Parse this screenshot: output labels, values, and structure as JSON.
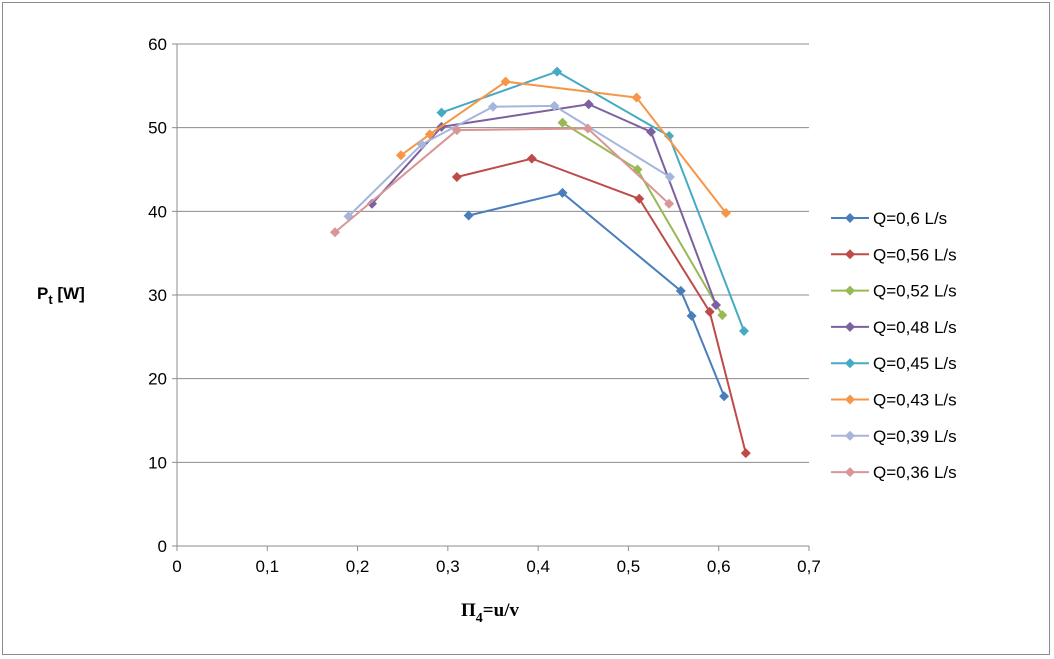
{
  "chart_data": {
    "type": "line",
    "title": "",
    "xlabel_main": "Π",
    "xlabel_sub": "4",
    "xlabel_rest": "=u/v",
    "ylabel_main": "P",
    "ylabel_sub": "t",
    "ylabel_rest": " [W]",
    "xlim": [
      0,
      0.7
    ],
    "ylim": [
      0,
      60
    ],
    "xticks": [
      0,
      0.1,
      0.2,
      0.3,
      0.4,
      0.5,
      0.6,
      0.7
    ],
    "xtick_labels": [
      "0",
      "0,1",
      "0,2",
      "0,3",
      "0,4",
      "0,5",
      "0,6",
      "0,7"
    ],
    "yticks": [
      0,
      10,
      20,
      30,
      40,
      50,
      60
    ],
    "ytick_labels": [
      "0",
      "10",
      "20",
      "30",
      "40",
      "50",
      "60"
    ],
    "grid": "horizontal",
    "legend_position": "right",
    "series": [
      {
        "name": "Q=0,6 L/s",
        "color": "#4a7ebb",
        "x": [
          0.323,
          0.427,
          0.558,
          0.57,
          0.606
        ],
        "y": [
          39.5,
          42.2,
          30.5,
          27.5,
          17.9
        ]
      },
      {
        "name": "Q=0,56 L/s",
        "color": "#be4b48",
        "x": [
          0.31,
          0.393,
          0.512,
          0.59,
          0.63
        ],
        "y": [
          44.1,
          46.3,
          41.5,
          28.0,
          11.1
        ]
      },
      {
        "name": "Q=0,52 L/s",
        "color": "#98b954",
        "x": [
          0.427,
          0.51,
          0.604
        ],
        "y": [
          50.6,
          45.0,
          27.6
        ]
      },
      {
        "name": "Q=0,48 L/s",
        "color": "#7d60a0",
        "x": [
          0.216,
          0.293,
          0.456,
          0.525,
          0.597
        ],
        "y": [
          40.9,
          50.1,
          52.8,
          49.5,
          28.8
        ]
      },
      {
        "name": "Q=0,45 L/s",
        "color": "#46aac5",
        "x": [
          0.293,
          0.421,
          0.545,
          0.628
        ],
        "y": [
          51.8,
          56.7,
          49.0,
          25.7
        ]
      },
      {
        "name": "Q=0,43 L/s",
        "color": "#f79646",
        "x": [
          0.248,
          0.28,
          0.364,
          0.509,
          0.608
        ],
        "y": [
          46.7,
          49.2,
          55.5,
          53.6,
          39.8
        ]
      },
      {
        "name": "Q=0,39 L/s",
        "color": "#a5b6dc",
        "x": [
          0.19,
          0.271,
          0.35,
          0.418,
          0.546
        ],
        "y": [
          39.4,
          48.0,
          52.5,
          52.6,
          44.1
        ]
      },
      {
        "name": "Q=0,36 L/s",
        "color": "#d99694",
        "x": [
          0.175,
          0.31,
          0.455,
          0.545
        ],
        "y": [
          37.5,
          49.7,
          49.9,
          40.9
        ]
      }
    ]
  }
}
